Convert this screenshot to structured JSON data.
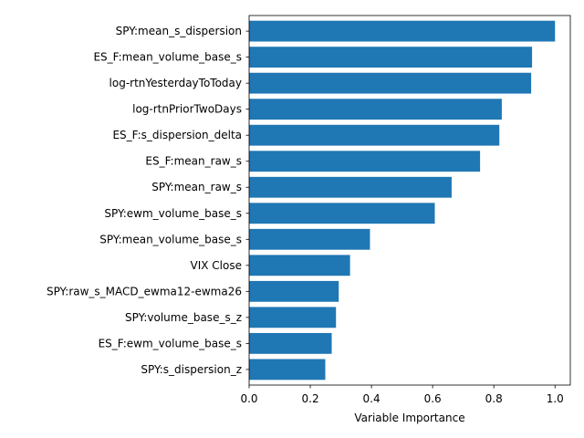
{
  "chart_data": {
    "type": "bar",
    "orientation": "horizontal",
    "xlabel": "Variable Importance",
    "ylabel": "",
    "xlim": [
      0,
      1.05
    ],
    "xticks": [
      0.0,
      0.2,
      0.4,
      0.6,
      0.8,
      1.0
    ],
    "xtick_labels": [
      "0.0",
      "0.2",
      "0.4",
      "0.6",
      "0.8",
      "1.0"
    ],
    "grid": false,
    "bar_color": "#1f77b4",
    "categories": [
      "SPY:mean_s_dispersion",
      "ES_F:mean_volume_base_s",
      "log-rtnYesterdayToToday",
      "log-rtnPriorTwoDays",
      "ES_F:s_dispersion_delta",
      "ES_F:mean_raw_s",
      "SPY:mean_raw_s",
      "SPY:ewm_volume_base_s",
      "SPY:mean_volume_base_s",
      "VIX Close",
      "SPY:raw_s_MACD_ewma12-ewma26",
      "SPY:volume_base_s_z",
      "ES_F:ewm_volume_base_s",
      "SPY:s_dispersion_z"
    ],
    "values": [
      1.0,
      0.925,
      0.922,
      0.826,
      0.818,
      0.755,
      0.662,
      0.607,
      0.395,
      0.33,
      0.293,
      0.284,
      0.27,
      0.249
    ]
  }
}
